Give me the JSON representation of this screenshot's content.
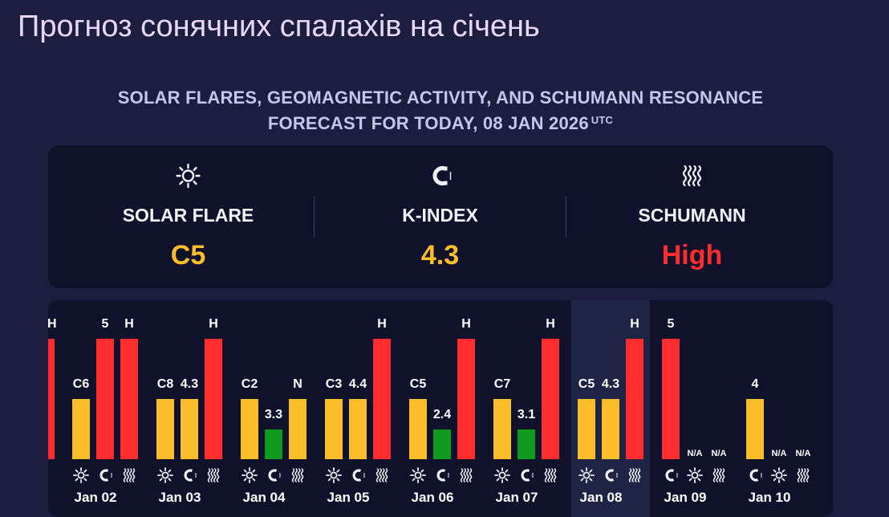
{
  "page_title": "Прогноз сонячних спалахів на січень",
  "subtitle": {
    "line1": "SOLAR FLARES, GEOMAGNETIC ACTIVITY, AND SCHUMANN RESONANCE",
    "line2": "FORECAST FOR TODAY, 08 JAN 2026",
    "tz": "UTC"
  },
  "summary": {
    "solar_flare": {
      "label": "SOLAR FLARE",
      "value": "C5",
      "icon": "sun-icon",
      "color": "#fbbd2a"
    },
    "k_index": {
      "label": "K-INDEX",
      "value": "4.3",
      "icon": "magnet-icon",
      "color": "#fbbd2a"
    },
    "schumann": {
      "label": "SCHUMANN",
      "value": "High",
      "icon": "waves-icon",
      "color": "#ff2d2d"
    }
  },
  "colors": {
    "low": "#0f9b20",
    "medium": "#fbbd2a",
    "high": "#ff2d2d"
  },
  "chart_data": {
    "type": "bar",
    "series_icons": [
      "sun-icon",
      "magnet-icon",
      "waves-icon"
    ],
    "days": [
      {
        "date": "Jan 02",
        "flare": {
          "label": "C6",
          "level": "medium"
        },
        "kindex": {
          "label": "5",
          "value": 5,
          "level": "high"
        },
        "schumann": {
          "label": "H",
          "level": "high"
        }
      },
      {
        "date": "Jan 03",
        "flare": {
          "label": "C8",
          "level": "medium"
        },
        "kindex": {
          "label": "4.3",
          "value": 4.3,
          "level": "medium"
        },
        "schumann": {
          "label": "H",
          "level": "high"
        }
      },
      {
        "date": "Jan 04",
        "flare": {
          "label": "C2",
          "level": "medium"
        },
        "kindex": {
          "label": "3.3",
          "value": 3.3,
          "level": "low"
        },
        "schumann": {
          "label": "N",
          "level": "medium"
        }
      },
      {
        "date": "Jan 05",
        "flare": {
          "label": "C3",
          "level": "medium"
        },
        "kindex": {
          "label": "4.4",
          "value": 4.4,
          "level": "medium"
        },
        "schumann": {
          "label": "H",
          "level": "high"
        }
      },
      {
        "date": "Jan 06",
        "flare": {
          "label": "C5",
          "level": "medium"
        },
        "kindex": {
          "label": "2.4",
          "value": 2.4,
          "level": "low"
        },
        "schumann": {
          "label": "H",
          "level": "high"
        }
      },
      {
        "date": "Jan 07",
        "flare": {
          "label": "C7",
          "level": "medium"
        },
        "kindex": {
          "label": "3.1",
          "value": 3.1,
          "level": "low"
        },
        "schumann": {
          "label": "H",
          "level": "high"
        }
      },
      {
        "date": "Jan 08",
        "flare": {
          "label": "C5",
          "level": "medium"
        },
        "kindex": {
          "label": "4.3",
          "value": 4.3,
          "level": "medium"
        },
        "schumann": {
          "label": "H",
          "level": "high"
        },
        "today": true
      },
      {
        "date": "Jan 09",
        "flare": {
          "label": "5",
          "level": "high"
        },
        "kindex": {
          "label": "N/A",
          "level": "na"
        },
        "schumann": {
          "label": "N/A",
          "level": "na"
        },
        "order": [
          "magnet-icon",
          "sun-icon",
          "waves-icon"
        ]
      },
      {
        "date": "Jan 10",
        "flare": {
          "label": "4",
          "level": "medium"
        },
        "kindex": {
          "label": "N/A",
          "level": "na"
        },
        "schumann": {
          "label": "N/A",
          "level": "na"
        },
        "order": [
          "magnet-icon",
          "sun-icon",
          "waves-icon"
        ]
      }
    ]
  }
}
